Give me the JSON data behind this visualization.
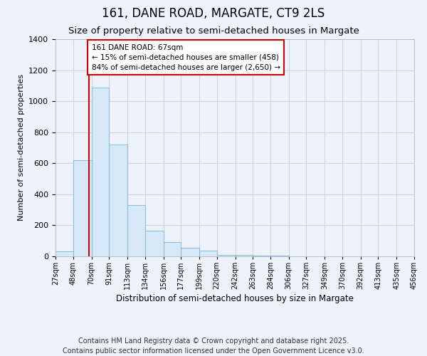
{
  "title": "161, DANE ROAD, MARGATE, CT9 2LS",
  "subtitle": "Size of property relative to semi-detached houses in Margate",
  "xlabel": "Distribution of semi-detached houses by size in Margate",
  "ylabel": "Number of semi-detached properties",
  "bin_labels": [
    "27sqm",
    "48sqm",
    "70sqm",
    "91sqm",
    "113sqm",
    "134sqm",
    "156sqm",
    "177sqm",
    "199sqm",
    "220sqm",
    "242sqm",
    "263sqm",
    "284sqm",
    "306sqm",
    "327sqm",
    "349sqm",
    "370sqm",
    "392sqm",
    "413sqm",
    "435sqm",
    "456sqm"
  ],
  "bar_heights": [
    30,
    620,
    1090,
    720,
    330,
    165,
    90,
    55,
    35,
    10,
    8,
    5,
    3,
    2,
    1,
    1,
    0,
    0,
    0,
    0
  ],
  "bar_color": "#d6e8f7",
  "bar_edge_color": "#7ab4d8",
  "grid_color": "#c8d4e8",
  "background_color": "#eef2fb",
  "vline_x": 67,
  "vline_color": "#cc0000",
  "annotation_text": "161 DANE ROAD: 67sqm\n← 15% of semi-detached houses are smaller (458)\n84% of semi-detached houses are larger (2,650) →",
  "annotation_box_color": "#ffffff",
  "annotation_box_edge": "#cc0000",
  "ylim": [
    0,
    1400
  ],
  "yticks": [
    0,
    200,
    400,
    600,
    800,
    1000,
    1200,
    1400
  ],
  "bin_edges": [
    27,
    48,
    70,
    91,
    113,
    134,
    156,
    177,
    199,
    220,
    242,
    263,
    284,
    306,
    327,
    349,
    370,
    392,
    413,
    435,
    456
  ],
  "footer_text": "Contains HM Land Registry data © Crown copyright and database right 2025.\nContains public sector information licensed under the Open Government Licence v3.0.",
  "title_fontsize": 12,
  "subtitle_fontsize": 9.5,
  "footer_fontsize": 7
}
